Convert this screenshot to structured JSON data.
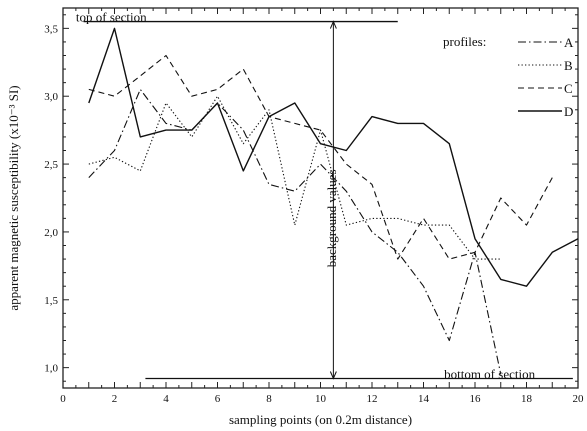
{
  "chart_data": {
    "type": "line",
    "title": "",
    "xlabel": "sampling points (on 0.2m distance)",
    "ylabel": "apparent magnetic susceptibility (x10⁻³ SI)",
    "xlim": [
      0,
      20
    ],
    "ylim": [
      0.85,
      3.65
    ],
    "x_ticks": [
      0,
      2,
      4,
      6,
      8,
      10,
      12,
      14,
      16,
      18,
      20
    ],
    "y_ticks": [
      1.0,
      1.5,
      2.0,
      2.5,
      3.0,
      3.5
    ],
    "y_tick_labels": [
      "1,0",
      "1,5",
      "2,0",
      "2,5",
      "3,0",
      "3,5"
    ],
    "grid": false,
    "legend": {
      "title": "profiles:",
      "placement": "top-right"
    },
    "series": [
      {
        "name": "A",
        "style": "dash-dot",
        "x": [
          1,
          2,
          3,
          4,
          5,
          6,
          7,
          8,
          9,
          10,
          11,
          12,
          13,
          14,
          15,
          16,
          17
        ],
        "values": [
          2.4,
          2.6,
          3.05,
          2.8,
          2.75,
          2.95,
          2.75,
          2.35,
          2.3,
          2.5,
          2.3,
          2.0,
          1.85,
          1.6,
          1.2,
          1.85,
          0.95
        ]
      },
      {
        "name": "B",
        "style": "dotted",
        "x": [
          1,
          2,
          3,
          4,
          5,
          6,
          7,
          8,
          9,
          10,
          11,
          12,
          13,
          14,
          15,
          16,
          17
        ],
        "values": [
          2.5,
          2.55,
          2.45,
          2.95,
          2.7,
          3.0,
          2.65,
          2.9,
          2.05,
          2.75,
          2.05,
          2.1,
          2.1,
          2.05,
          2.05,
          1.8,
          1.8
        ]
      },
      {
        "name": "C",
        "style": "dashed",
        "x": [
          1,
          2,
          3,
          4,
          5,
          6,
          7,
          8,
          9,
          10,
          11,
          12,
          13,
          14,
          15,
          16,
          17,
          18,
          19
        ],
        "values": [
          3.05,
          3.0,
          3.15,
          3.3,
          3.0,
          3.05,
          3.2,
          2.85,
          2.8,
          2.75,
          2.5,
          2.35,
          1.8,
          2.1,
          1.8,
          1.85,
          2.25,
          2.05,
          2.4
        ]
      },
      {
        "name": "D",
        "style": "solid",
        "x": [
          1,
          2,
          3,
          4,
          5,
          6,
          7,
          8,
          9,
          10,
          11,
          12,
          13,
          14,
          15,
          16,
          17,
          18,
          19,
          20
        ],
        "values": [
          2.95,
          3.5,
          2.7,
          2.75,
          2.75,
          2.95,
          2.45,
          2.85,
          2.95,
          2.65,
          2.6,
          2.85,
          2.8,
          2.8,
          2.65,
          1.95,
          1.65,
          1.6,
          1.85,
          1.95
        ]
      }
    ],
    "annotations": [
      {
        "text": "top of section",
        "at_x": 0.5,
        "at_y": 3.55
      },
      {
        "text": "bottom of section",
        "at_x": 14.8,
        "at_y": 0.92
      },
      {
        "text": "background values",
        "at_x": 10.6,
        "at_y": 2.1
      }
    ],
    "reference_lines": {
      "top_y": 3.55,
      "top_x": [
        0.8,
        13.0
      ],
      "bottom_y": 0.92,
      "bottom_x": [
        3.2,
        19.8
      ],
      "vertical_x": 10.5,
      "vertical_y": [
        0.92,
        3.55
      ]
    }
  }
}
